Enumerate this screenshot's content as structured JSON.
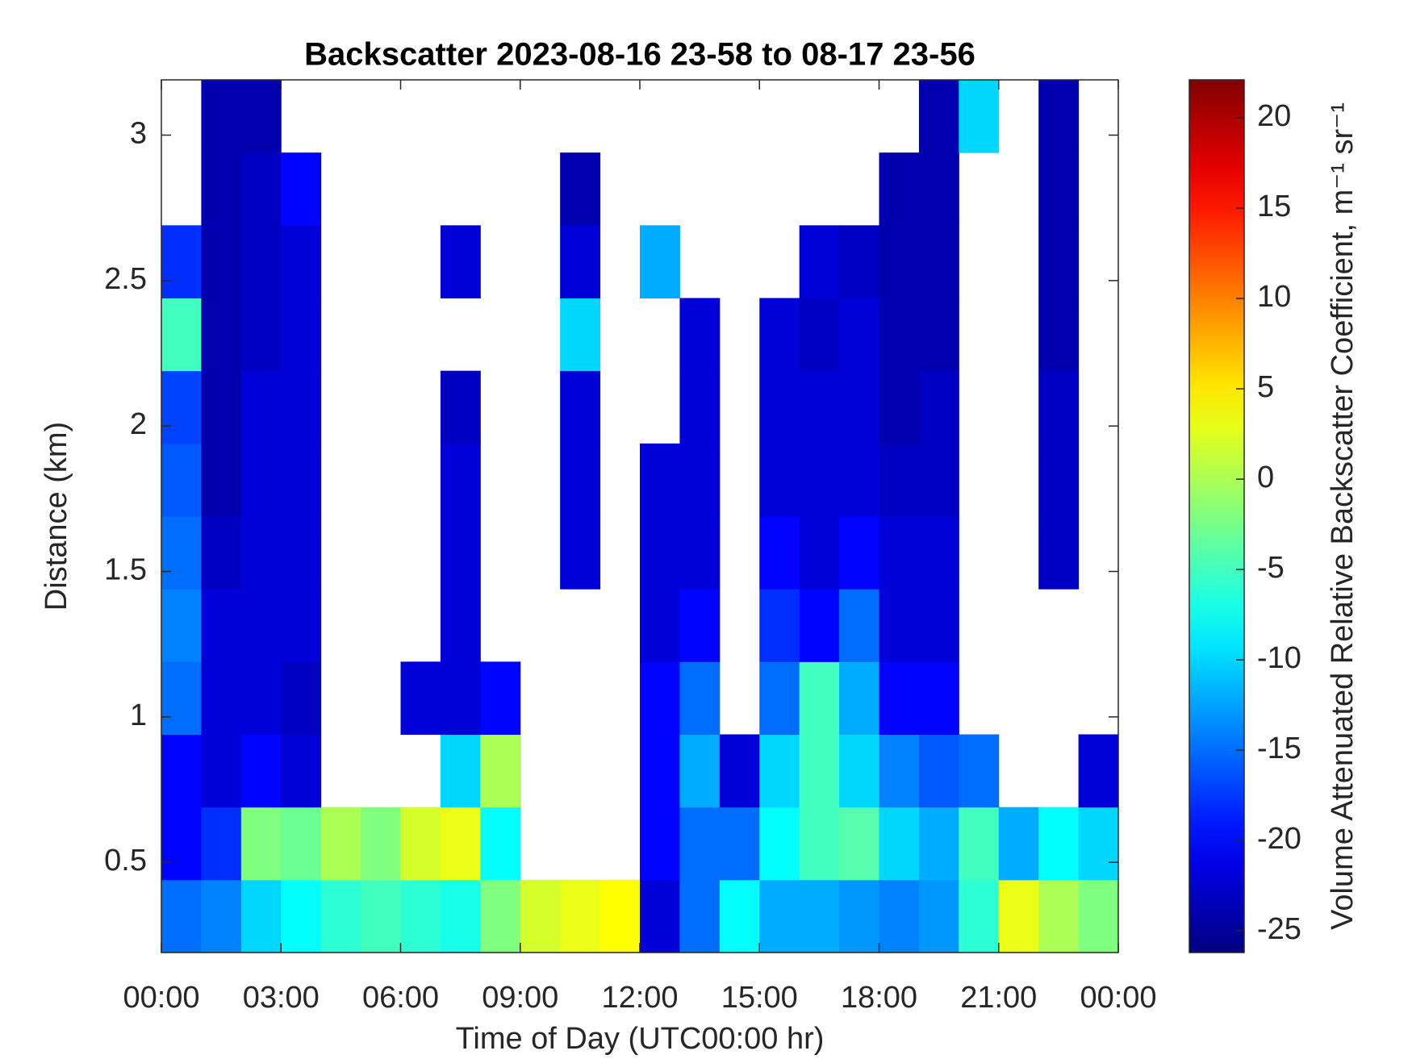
{
  "chart_data": {
    "type": "heatmap",
    "title": "Backscatter 2023-08-16 23-58 to 08-17 23-56",
    "x_label": "Time of Day (UTC00:00 hr)",
    "y_label": "Distance (km)",
    "colorbar_label": "Volume Attenuated Relative Backscatter Coefficient, m⁻¹ sr⁻¹",
    "colormap": "jet",
    "x": [
      0.5,
      1.5,
      2.5,
      3.5,
      4.5,
      5.5,
      6.5,
      7.5,
      8.5,
      9.5,
      10.5,
      11.5,
      12.5,
      13.5,
      14.5,
      15.5,
      16.5,
      17.5,
      18.5,
      19.5,
      20.5,
      21.5,
      22.5,
      23.5
    ],
    "y": [
      0.315,
      0.565,
      0.815,
      1.065,
      1.315,
      1.565,
      1.815,
      2.065,
      2.315,
      2.565,
      2.815,
      3.065
    ],
    "values": [
      [
        -15,
        -14,
        -10,
        -8,
        -6,
        -5,
        -6,
        -7,
        -2,
        2,
        3,
        4,
        -22,
        -15,
        -8,
        -12,
        -12,
        -13,
        -14,
        -13,
        -6,
        3,
        0,
        -2
      ],
      [
        -20,
        -18,
        -2,
        -3,
        0,
        -2,
        2,
        3,
        -8,
        null,
        null,
        null,
        -20,
        -15,
        -15,
        -8,
        -5,
        -4,
        -10,
        -12,
        -5,
        -12,
        -8,
        -10
      ],
      [
        -20,
        -22,
        -20,
        -22,
        null,
        null,
        null,
        -10,
        0,
        null,
        null,
        null,
        -20,
        -12,
        -22,
        -10,
        -5,
        -10,
        -14,
        -16,
        -15,
        null,
        null,
        -22
      ],
      [
        -15,
        -22,
        -22,
        -23,
        null,
        null,
        -22,
        -22,
        -20,
        null,
        null,
        null,
        -20,
        -15,
        null,
        -15,
        -5,
        -12,
        -20,
        -20,
        null,
        null,
        null,
        null
      ],
      [
        -14,
        -22,
        -22,
        -22,
        null,
        null,
        null,
        -22,
        null,
        null,
        null,
        null,
        -22,
        -20,
        null,
        -18,
        -20,
        -15,
        -22,
        -22,
        null,
        null,
        null,
        null
      ],
      [
        -15,
        -23,
        -22,
        -22,
        null,
        null,
        null,
        -22,
        null,
        null,
        -22,
        null,
        -22,
        -22,
        null,
        -20,
        -22,
        -20,
        -22,
        -22,
        null,
        null,
        -23,
        null
      ],
      [
        -16,
        -24,
        -22,
        -22,
        null,
        null,
        null,
        -22,
        null,
        null,
        -22,
        null,
        -22,
        -22,
        null,
        -22,
        -22,
        -22,
        -23,
        -23,
        null,
        null,
        -23,
        null
      ],
      [
        -17,
        -24,
        -22,
        -22,
        null,
        null,
        null,
        -23,
        null,
        null,
        -22,
        null,
        null,
        -22,
        null,
        -22,
        -22,
        -22,
        -24,
        -23,
        null,
        null,
        -23,
        null
      ],
      [
        -5,
        -24,
        -23,
        -22,
        null,
        null,
        null,
        null,
        null,
        null,
        -10,
        null,
        null,
        -22,
        null,
        -22,
        -23,
        -22,
        -24,
        -24,
        null,
        null,
        -24,
        null
      ],
      [
        -18,
        -24,
        -23,
        -22,
        null,
        null,
        null,
        -22,
        null,
        null,
        -22,
        null,
        -12,
        null,
        null,
        null,
        -22,
        -23,
        -24,
        -24,
        null,
        null,
        -24,
        null
      ],
      [
        null,
        -24,
        -23,
        -20,
        null,
        null,
        null,
        null,
        null,
        null,
        -24,
        null,
        null,
        null,
        null,
        null,
        null,
        null,
        -24,
        -24,
        null,
        null,
        -24,
        null
      ],
      [
        null,
        -24,
        -24,
        null,
        null,
        null,
        null,
        null,
        null,
        null,
        null,
        null,
        null,
        null,
        null,
        null,
        null,
        null,
        null,
        -24,
        -10,
        null,
        -24,
        null
      ]
    ],
    "xlim": [
      0,
      24
    ],
    "xticks": [
      {
        "value": 0,
        "label": "00:00"
      },
      {
        "value": 3,
        "label": "03:00"
      },
      {
        "value": 6,
        "label": "06:00"
      },
      {
        "value": 9,
        "label": "09:00"
      },
      {
        "value": 12,
        "label": "12:00"
      },
      {
        "value": 15,
        "label": "15:00"
      },
      {
        "value": 18,
        "label": "18:00"
      },
      {
        "value": 21,
        "label": "21:00"
      },
      {
        "value": 24,
        "label": "00:00"
      }
    ],
    "ylim": [
      0.19,
      3.19
    ],
    "yticks": [
      0.5,
      1,
      1.5,
      2,
      2.5,
      3
    ],
    "clim": [
      -26.2,
      22.1
    ],
    "cticks": [
      -25,
      -20,
      -15,
      -10,
      -5,
      0,
      5,
      10,
      15,
      20
    ]
  }
}
